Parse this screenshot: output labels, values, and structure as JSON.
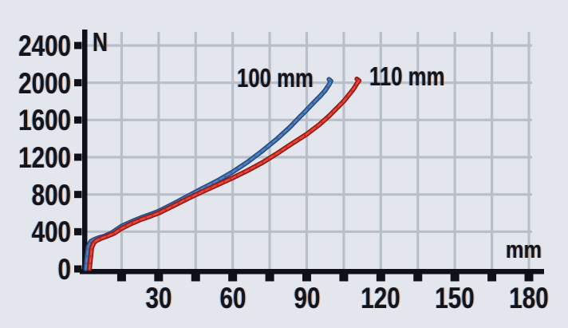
{
  "figure": {
    "y_axis_unit": "N",
    "x_axis_unit": "mm",
    "series_label_1": "100 mm",
    "series_label_2": "110 mm"
  },
  "chart_data": {
    "type": "line",
    "title": "",
    "xlabel": "mm",
    "ylabel": "N",
    "xlim": [
      0,
      180
    ],
    "ylim": [
      0,
      2400
    ],
    "grid": true,
    "legend_position": "inline-labels-at-curve-ends",
    "background_color": "#e3e7ed",
    "grid_color": "#b7c0ca",
    "axis_color": "#101018",
    "x_minor_tick_step": 15,
    "x_labeled_ticks": [
      30,
      60,
      90,
      120,
      150,
      180
    ],
    "y_labeled_ticks": [
      0,
      400,
      800,
      1200,
      1600,
      2000,
      2400
    ],
    "series": [
      {
        "name": "100 mm",
        "color": "#3a69a8",
        "edge_color": "#24497e",
        "highlight_color": "#5b8ac4",
        "points": [
          [
            0.5,
            0
          ],
          [
            0.9,
            120
          ],
          [
            1.5,
            240
          ],
          [
            2.5,
            295
          ],
          [
            4,
            318
          ],
          [
            6,
            338
          ],
          [
            8,
            352
          ],
          [
            11,
            388
          ],
          [
            15,
            460
          ],
          [
            19,
            508
          ],
          [
            23,
            552
          ],
          [
            27,
            590
          ],
          [
            30,
            620
          ],
          [
            36,
            700
          ],
          [
            42,
            785
          ],
          [
            48,
            868
          ],
          [
            54,
            950
          ],
          [
            60,
            1042
          ],
          [
            66,
            1148
          ],
          [
            72,
            1268
          ],
          [
            78,
            1398
          ],
          [
            83,
            1518
          ],
          [
            87,
            1628
          ],
          [
            90,
            1708
          ],
          [
            93,
            1792
          ],
          [
            95.5,
            1858
          ],
          [
            97.5,
            1918
          ],
          [
            99,
            1978
          ],
          [
            99.8,
            2018
          ],
          [
            99,
            2036
          ]
        ]
      },
      {
        "name": "110 mm",
        "color": "#cf2d22",
        "edge_color": "#8c1712",
        "highlight_color": "#e4564a",
        "points": [
          [
            2,
            0
          ],
          [
            2.4,
            100
          ],
          [
            2.9,
            230
          ],
          [
            3.8,
            282
          ],
          [
            5,
            308
          ],
          [
            7,
            332
          ],
          [
            9,
            350
          ],
          [
            12,
            382
          ],
          [
            15,
            435
          ],
          [
            19,
            488
          ],
          [
            23,
            532
          ],
          [
            27,
            570
          ],
          [
            30,
            600
          ],
          [
            36,
            678
          ],
          [
            42,
            758
          ],
          [
            48,
            833
          ],
          [
            54,
            905
          ],
          [
            60,
            978
          ],
          [
            66,
            1056
          ],
          [
            72,
            1142
          ],
          [
            78,
            1240
          ],
          [
            84,
            1346
          ],
          [
            90,
            1448
          ],
          [
            95,
            1548
          ],
          [
            99,
            1642
          ],
          [
            102,
            1722
          ],
          [
            105,
            1802
          ],
          [
            107,
            1868
          ],
          [
            109,
            1935
          ],
          [
            110.4,
            1995
          ],
          [
            111.2,
            2022
          ],
          [
            110.3,
            2040
          ]
        ]
      }
    ]
  }
}
